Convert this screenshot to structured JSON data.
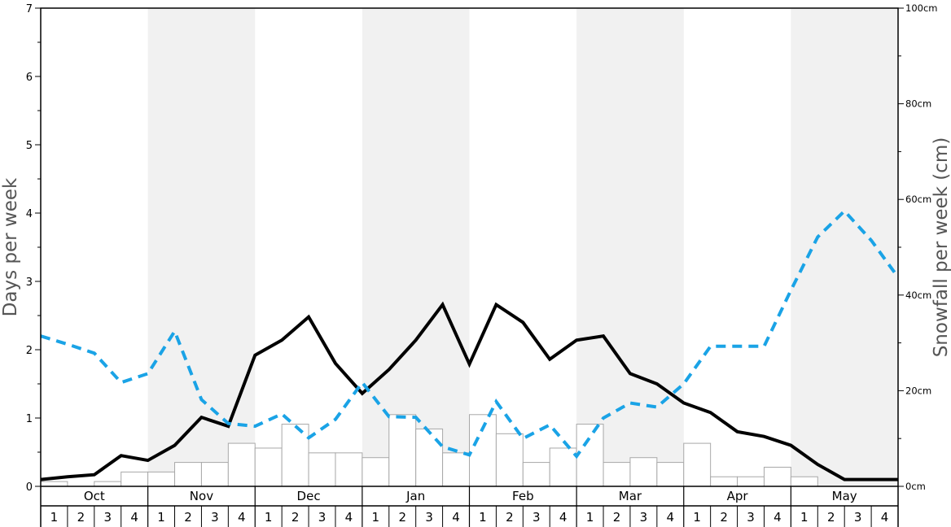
{
  "chart_data": {
    "type": "bar",
    "title": "",
    "ylabel_left": "Days per week",
    "ylabel_right": "Snowfall per week (cm)",
    "ylim_left": [
      0,
      7
    ],
    "ylim_right": [
      0,
      100
    ],
    "y_ticks_left": [
      "0",
      "1",
      "2",
      "3",
      "4",
      "5",
      "6",
      "7"
    ],
    "y_ticks_right": [
      "0cm",
      "20cm",
      "40cm",
      "60cm",
      "80cm",
      "100cm"
    ],
    "months": [
      "Oct",
      "Nov",
      "Dec",
      "Jan",
      "Feb",
      "Mar",
      "Apr",
      "May"
    ],
    "week_labels": [
      "1",
      "2",
      "3",
      "4"
    ],
    "grid": false,
    "series": [
      {
        "type": "bar",
        "axis": "right",
        "values": [
          1,
          0,
          1,
          3,
          3,
          5,
          5,
          9,
          8,
          13,
          7,
          7,
          6,
          15,
          12,
          7,
          15,
          11,
          5,
          8,
          13,
          5,
          6,
          5,
          9,
          2,
          2,
          4,
          2,
          0,
          0,
          0
        ]
      },
      {
        "type": "line",
        "axis": "left",
        "style": "solid",
        "color": "#000000",
        "values": [
          0.1,
          0.14,
          0.17,
          0.45,
          0.38,
          0.6,
          1.01,
          0.88,
          1.92,
          2.14,
          2.48,
          1.8,
          1.36,
          1.71,
          2.14,
          2.66,
          1.79,
          2.66,
          2.4,
          1.86,
          2.14,
          2.2,
          1.65,
          1.5,
          1.22,
          1.08,
          0.8,
          0.73,
          0.6,
          0.32,
          0.1,
          0.1,
          0.1
        ]
      },
      {
        "type": "line",
        "axis": "left",
        "style": "dashed",
        "color": "#1aa3e6",
        "values": [
          2.2,
          2.08,
          1.95,
          1.52,
          1.65,
          2.27,
          1.27,
          0.92,
          0.88,
          1.06,
          0.71,
          0.98,
          1.52,
          1.02,
          1.01,
          0.58,
          0.46,
          1.24,
          0.7,
          0.9,
          0.44,
          1.0,
          1.22,
          1.16,
          1.5,
          2.05,
          2.05,
          2.05,
          2.87,
          3.65,
          4.03,
          3.6,
          3.06
        ]
      }
    ]
  }
}
